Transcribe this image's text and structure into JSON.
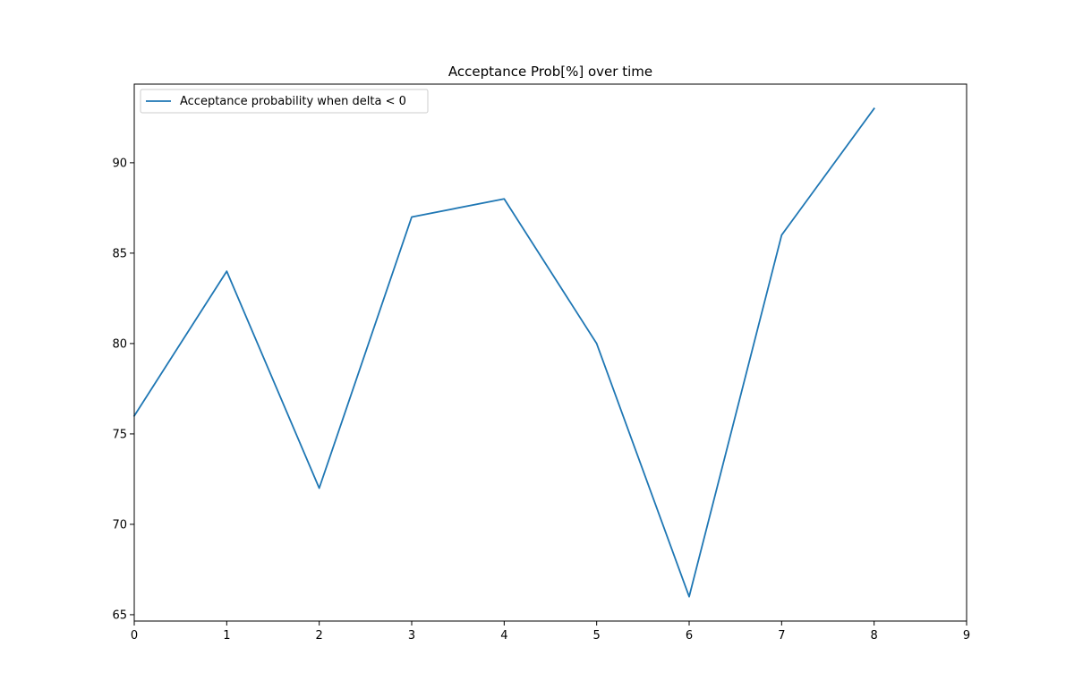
{
  "chart_data": {
    "type": "line",
    "title": "Acceptance Prob[%] over time",
    "xlabel": "",
    "ylabel": "",
    "x": [
      0,
      1,
      2,
      3,
      4,
      5,
      6,
      7,
      8
    ],
    "series": [
      {
        "name": "Acceptance probability when delta < 0",
        "values": [
          76,
          84,
          72,
          87,
          88,
          80,
          66,
          86,
          93
        ],
        "color": "#1f77b4"
      }
    ],
    "xlim": [
      0,
      9
    ],
    "ylim": [
      64.65,
      94.35
    ],
    "xticks": [
      0,
      1,
      2,
      3,
      4,
      5,
      6,
      7,
      8,
      9
    ],
    "yticks": [
      65,
      70,
      75,
      80,
      85,
      90
    ],
    "grid": false,
    "legend_position": "upper-left"
  }
}
